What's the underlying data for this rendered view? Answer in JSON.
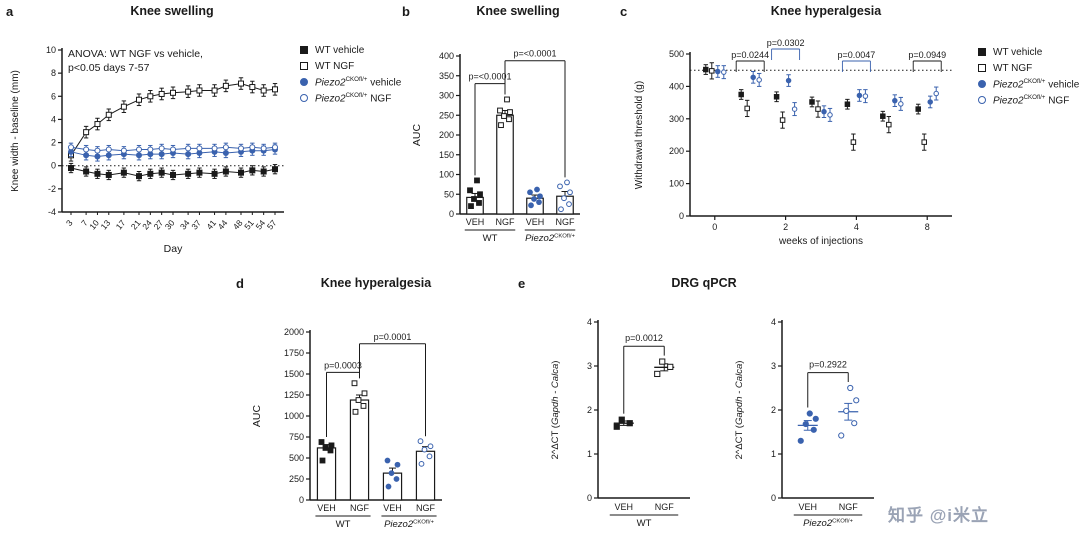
{
  "figure": {
    "panel_labels": {
      "a": "a",
      "b": "b",
      "c": "c",
      "d": "d",
      "e": "e"
    },
    "watermark": "知乎 @i米立"
  },
  "colors": {
    "black": "#1a1a1a",
    "blue": "#3a62ae"
  },
  "series_defs": {
    "wt_veh": {
      "label": "WT vehicle",
      "marker": "square",
      "fillmode": "filled",
      "color": "black",
      "parts": [
        {
          "t": "WT vehicle"
        }
      ]
    },
    "wt_ngf": {
      "label": "WT NGF",
      "marker": "square",
      "fillmode": "open",
      "color": "black",
      "parts": [
        {
          "t": "WT NGF"
        }
      ]
    },
    "p2_veh": {
      "label": "Piezo2CKOfl/+ vehicle",
      "marker": "circle",
      "fillmode": "filled",
      "color": "blue",
      "parts": [
        {
          "t": "Piezo2",
          "i": true
        },
        {
          "t": "CKOfl/+",
          "sup": true
        },
        {
          "t": " vehicle"
        }
      ]
    },
    "p2_ngf": {
      "label": "Piezo2CKOfl/+ NGF",
      "marker": "circle",
      "fillmode": "open",
      "color": "blue",
      "parts": [
        {
          "t": "Piezo2",
          "i": true
        },
        {
          "t": "CKOfl/+",
          "sup": true
        },
        {
          "t": " NGF"
        }
      ]
    }
  },
  "legend_order": [
    "wt_veh",
    "wt_ngf",
    "p2_veh",
    "p2_ngf"
  ],
  "chart_data": [
    {
      "id": "a",
      "type": "line",
      "title": "Knee swelling",
      "annotation": "ANOVA: WT NGF vs vehicle,\np<0.05 days 7-57",
      "xlabel": "Day",
      "ylabel": "Knee width - baseline (mm)",
      "x": [
        3,
        7,
        10,
        13,
        17,
        21,
        24,
        27,
        30,
        34,
        37,
        41,
        44,
        48,
        51,
        54,
        57
      ],
      "ylim": [
        -4,
        10
      ],
      "yticks": [
        -4,
        -2,
        0,
        2,
        4,
        6,
        8,
        10
      ],
      "ref_line": 0,
      "series": [
        {
          "key": "wt_veh",
          "values": [
            -0.2,
            -0.5,
            -0.7,
            -0.8,
            -0.6,
            -0.9,
            -0.7,
            -0.6,
            -0.8,
            -0.7,
            -0.6,
            -0.7,
            -0.5,
            -0.6,
            -0.4,
            -0.5,
            -0.3
          ],
          "err": 0.4
        },
        {
          "key": "wt_ngf",
          "values": [
            0.9,
            2.9,
            3.6,
            4.4,
            5.1,
            5.7,
            6.0,
            6.2,
            6.3,
            6.4,
            6.5,
            6.5,
            6.9,
            7.1,
            6.8,
            6.5,
            6.6
          ],
          "err": 0.5
        },
        {
          "key": "p2_veh",
          "values": [
            1.2,
            0.9,
            0.8,
            0.9,
            1.0,
            0.9,
            1.0,
            1.0,
            1.1,
            1.0,
            1.1,
            1.2,
            1.1,
            1.2,
            1.3,
            1.3,
            1.4
          ],
          "err": 0.4
        },
        {
          "key": "p2_ngf",
          "values": [
            1.6,
            1.4,
            1.3,
            1.4,
            1.3,
            1.4,
            1.4,
            1.5,
            1.4,
            1.5,
            1.5,
            1.5,
            1.6,
            1.5,
            1.6,
            1.5,
            1.6
          ],
          "err": 0.35
        }
      ]
    },
    {
      "id": "b",
      "type": "bar",
      "title": "Knee swelling",
      "ylabel": "AUC",
      "ylim": [
        0,
        400
      ],
      "yticks": [
        0,
        50,
        100,
        150,
        200,
        250,
        300,
        350,
        400
      ],
      "bars": [
        {
          "tick": "VEH",
          "series": "wt_veh",
          "mean": 42,
          "sem": 10,
          "points": [
            20,
            28,
            38,
            50,
            60,
            85
          ]
        },
        {
          "tick": "NGF",
          "series": "wt_ngf",
          "mean": 250,
          "sem": 12,
          "points": [
            225,
            240,
            248,
            258,
            262,
            290
          ]
        },
        {
          "tick": "VEH",
          "series": "p2_veh",
          "mean": 40,
          "sem": 8,
          "points": [
            22,
            30,
            38,
            45,
            55,
            62
          ]
        },
        {
          "tick": "NGF",
          "series": "p2_ngf",
          "mean": 45,
          "sem": 12,
          "points": [
            12,
            25,
            40,
            55,
            70,
            80
          ]
        }
      ],
      "sig": [
        {
          "from": 0,
          "to": 1,
          "y": 330,
          "label": "p=<0.0001"
        },
        {
          "from": 1,
          "to": 3,
          "y": 388,
          "label": "p=<0.0001"
        }
      ],
      "group_labels": [
        {
          "parts": [
            {
              "t": "WT"
            }
          ]
        },
        {
          "parts": [
            {
              "t": "Piezo2",
              "i": true
            },
            {
              "t": "CKOfl/+",
              "sup": true
            }
          ]
        }
      ]
    },
    {
      "id": "c",
      "type": "line",
      "title": "Knee hyperalgesia",
      "xlabel": "weeks of injections",
      "ylabel": "Withdrawal threshold (g)",
      "x": [
        0,
        1,
        2,
        3,
        4,
        5,
        8
      ],
      "categorical": true,
      "xticks": [
        0,
        2,
        4,
        8
      ],
      "ylim": [
        0,
        500
      ],
      "yticks": [
        0,
        100,
        200,
        300,
        400,
        500
      ],
      "ref_line": 450,
      "dodge": true,
      "series": [
        {
          "key": "wt_veh",
          "values": [
            452,
            375,
            368,
            352,
            345,
            308,
            330
          ],
          "err": 15
        },
        {
          "key": "wt_ngf",
          "values": [
            448,
            332,
            296,
            330,
            228,
            282,
            228
          ],
          "err": 25
        },
        {
          "key": "p2_veh",
          "values": [
            446,
            428,
            418,
            322,
            372,
            356,
            352
          ],
          "err": 18
        },
        {
          "key": "p2_ngf",
          "values": [
            444,
            420,
            330,
            312,
            370,
            346,
            378
          ],
          "err": 20
        }
      ],
      "sig": [
        {
          "xi": 1,
          "row": 0,
          "label": "p=0.0244",
          "color": "black"
        },
        {
          "xi": 2,
          "row": 1,
          "label": "p=0.0302",
          "color": "blue"
        },
        {
          "xi": 4,
          "row": 0,
          "label": "p=0.0047",
          "color": "blue"
        },
        {
          "xi": 6,
          "row": 0,
          "label": "p=0.0949",
          "color": "black"
        }
      ]
    },
    {
      "id": "d",
      "type": "bar",
      "title": "Knee hyperalgesia",
      "ylabel": "AUC",
      "ylim": [
        0,
        2000
      ],
      "yticks": [
        0,
        250,
        500,
        750,
        1000,
        1250,
        1500,
        1750,
        2000
      ],
      "bars": [
        {
          "tick": "VEH",
          "series": "wt_veh",
          "mean": 620,
          "sem": 40,
          "points": [
            470,
            590,
            620,
            650,
            690
          ]
        },
        {
          "tick": "NGF",
          "series": "wt_ngf",
          "mean": 1190,
          "sem": 60,
          "points": [
            1050,
            1120,
            1190,
            1270,
            1390
          ]
        },
        {
          "tick": "VEH",
          "series": "p2_veh",
          "mean": 320,
          "sem": 60,
          "points": [
            160,
            250,
            320,
            420,
            470
          ]
        },
        {
          "tick": "NGF",
          "series": "p2_ngf",
          "mean": 580,
          "sem": 55,
          "points": [
            430,
            520,
            600,
            640,
            700
          ]
        }
      ],
      "sig": [
        {
          "from": 0,
          "to": 1,
          "y": 1520,
          "label": "p=0.0003"
        },
        {
          "from": 1,
          "to": 3,
          "y": 1860,
          "label": "p=0.0001"
        }
      ],
      "group_labels": [
        {
          "parts": [
            {
              "t": "WT"
            }
          ]
        },
        {
          "parts": [
            {
              "t": "Piezo2",
              "i": true
            },
            {
              "t": "CKOfl/+",
              "sup": true
            }
          ]
        }
      ]
    },
    {
      "id": "e1",
      "type": "scatter",
      "title": "DRG qPCR",
      "ylabel_parts": [
        {
          "t": "2^ΔCT ("
        },
        {
          "t": "Gapdh - Calca",
          "i": true
        },
        {
          "t": ")"
        }
      ],
      "ylim": [
        0,
        4
      ],
      "yticks": [
        0,
        1,
        2,
        3,
        4
      ],
      "groups": [
        {
          "tick": "VEH",
          "series": "wt_veh",
          "mean": 1.7,
          "sem": 0.05,
          "points": [
            1.62,
            1.7,
            1.78
          ]
        },
        {
          "tick": "NGF",
          "series": "wt_ngf",
          "mean": 2.97,
          "sem": 0.08,
          "points": [
            2.82,
            2.98,
            3.1
          ]
        }
      ],
      "sig": {
        "y": 3.45,
        "label": "p=0.0012"
      },
      "group_label_parts": [
        {
          "t": "WT"
        }
      ]
    },
    {
      "id": "e2",
      "type": "scatter",
      "title": "DRG qPCR",
      "ylabel_parts": [
        {
          "t": "2^ΔCT ("
        },
        {
          "t": "Gapdh - Calca",
          "i": true
        },
        {
          "t": ")"
        }
      ],
      "ylim": [
        0,
        4
      ],
      "yticks": [
        0,
        1,
        2,
        3,
        4
      ],
      "groups": [
        {
          "tick": "VEH",
          "series": "p2_veh",
          "mean": 1.65,
          "sem": 0.11,
          "points": [
            1.3,
            1.55,
            1.68,
            1.8,
            1.92
          ]
        },
        {
          "tick": "NGF",
          "series": "p2_ngf",
          "mean": 1.96,
          "sem": 0.19,
          "points": [
            1.42,
            1.7,
            1.98,
            2.22,
            2.5
          ]
        }
      ],
      "sig": {
        "y": 2.85,
        "label": "p=0.2922"
      },
      "group_label_parts": [
        {
          "t": "Piezo2",
          "i": true
        },
        {
          "t": "CKOfl/+",
          "sup": true
        }
      ]
    }
  ]
}
